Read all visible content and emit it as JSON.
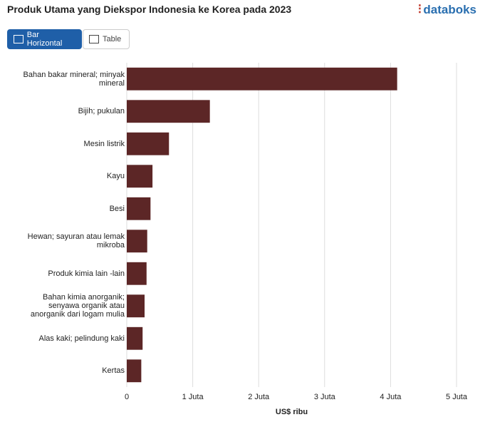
{
  "ui": {
    "logo": "databoks",
    "tabs": [
      "Bar Horizontal",
      "Table"
    ]
  },
  "chart_data": {
    "type": "bar",
    "orientation": "horizontal",
    "title": "Produk Utama yang Diekspor Indonesia ke Korea pada 2023",
    "x_label": "US$ ribu",
    "categories": [
      "Bahan bakar mineral; minyak mineral",
      "Bijih; pukulan",
      "Mesin listrik",
      "Kayu",
      "Besi",
      "Hewan; sayuran atau lemak mikroba",
      "Produk kimia lain -lain",
      "Bahan kimia anorganik; senyawa organik atau anorganik dari logam mulia",
      "Alas kaki; pelindung kaki",
      "Kertas"
    ],
    "values": [
      4100000,
      1260000,
      640000,
      390000,
      360000,
      310000,
      300000,
      270000,
      240000,
      220000
    ],
    "color": "#5c2626",
    "xlim": [
      0,
      5000000
    ],
    "xticks": [
      0,
      {
        "value": 1000000,
        "label": "1 Juta"
      },
      {
        "value": 2000000,
        "label": "2 Juta"
      },
      {
        "value": 3000000,
        "label": "3 Juta"
      },
      {
        "value": 4000000,
        "label": "4 Juta"
      },
      {
        "value": 5000000,
        "label": "5 Juta"
      }
    ],
    "grid": true
  }
}
